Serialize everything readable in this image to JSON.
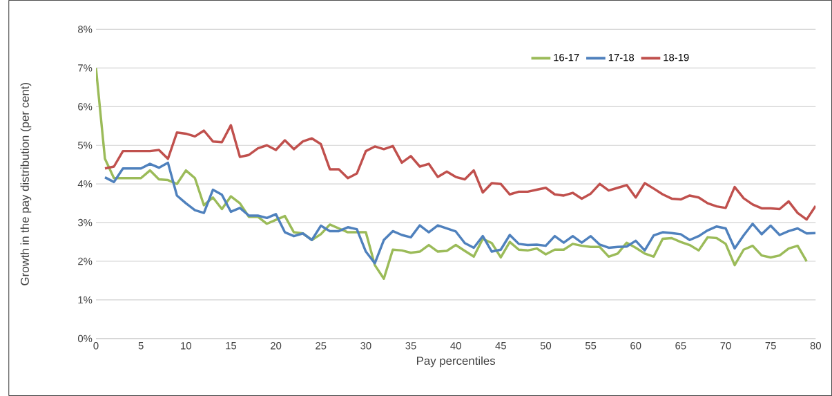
{
  "chart_data": {
    "type": "line",
    "xlabel": "Pay percentiles",
    "ylabel": "Growth in the pay distribution (per cent)",
    "x": [
      0,
      1,
      2,
      3,
      4,
      5,
      6,
      7,
      8,
      9,
      10,
      11,
      12,
      13,
      14,
      15,
      16,
      17,
      18,
      19,
      20,
      21,
      22,
      23,
      24,
      25,
      26,
      27,
      28,
      29,
      30,
      31,
      32,
      33,
      34,
      35,
      36,
      37,
      38,
      39,
      40,
      41,
      42,
      43,
      44,
      45,
      46,
      47,
      48,
      49,
      50,
      51,
      52,
      53,
      54,
      55,
      56,
      57,
      58,
      59,
      60,
      61,
      62,
      63,
      64,
      65,
      66,
      67,
      68,
      69,
      70,
      71,
      72,
      73,
      74,
      75,
      76,
      77,
      78,
      79,
      80
    ],
    "series": [
      {
        "name": "16-17",
        "color": "#9bbb59",
        "values": [
          7.0,
          4.65,
          4.15,
          4.15,
          4.15,
          4.15,
          4.35,
          4.12,
          4.1,
          4.0,
          4.35,
          4.15,
          3.45,
          3.65,
          3.35,
          3.68,
          3.5,
          3.15,
          3.15,
          2.97,
          3.07,
          3.17,
          2.75,
          2.72,
          2.55,
          2.7,
          2.95,
          2.85,
          2.75,
          2.75,
          2.75,
          1.9,
          1.55,
          2.3,
          2.28,
          2.22,
          2.25,
          2.42,
          2.25,
          2.27,
          2.42,
          2.27,
          2.12,
          2.58,
          2.47,
          2.1,
          2.5,
          2.3,
          2.28,
          2.33,
          2.18,
          2.3,
          2.3,
          2.45,
          2.4,
          2.37,
          2.37,
          2.12,
          2.2,
          2.48,
          2.35,
          2.2,
          2.12,
          2.58,
          2.6,
          2.5,
          2.42,
          2.28,
          2.62,
          2.6,
          2.45,
          1.9,
          2.3,
          2.4,
          2.15,
          2.1,
          2.15,
          2.33,
          2.4,
          2.0,
          null
        ]
      },
      {
        "name": "17-18",
        "color": "#4f81bd",
        "values": [
          null,
          4.17,
          4.05,
          4.4,
          4.4,
          4.4,
          4.52,
          4.42,
          4.55,
          3.7,
          3.5,
          3.32,
          3.25,
          3.85,
          3.72,
          3.28,
          3.38,
          3.18,
          3.18,
          3.12,
          3.22,
          2.75,
          2.65,
          2.72,
          2.55,
          2.92,
          2.78,
          2.78,
          2.88,
          2.83,
          2.25,
          1.95,
          2.55,
          2.78,
          2.68,
          2.62,
          2.93,
          2.75,
          2.93,
          2.85,
          2.77,
          2.47,
          2.35,
          2.65,
          2.25,
          2.3,
          2.68,
          2.45,
          2.42,
          2.43,
          2.4,
          2.65,
          2.48,
          2.65,
          2.48,
          2.65,
          2.43,
          2.35,
          2.37,
          2.38,
          2.53,
          2.28,
          2.67,
          2.75,
          2.73,
          2.7,
          2.55,
          2.65,
          2.8,
          2.9,
          2.85,
          2.33,
          2.67,
          2.97,
          2.7,
          2.92,
          2.68,
          2.78,
          2.85,
          2.72,
          2.73
        ]
      },
      {
        "name": "18-19",
        "color": "#c0504d",
        "values": [
          null,
          4.4,
          4.45,
          4.85,
          4.85,
          4.85,
          4.85,
          4.88,
          4.65,
          5.33,
          5.3,
          5.23,
          5.38,
          5.1,
          5.08,
          5.52,
          4.7,
          4.75,
          4.92,
          5.0,
          4.88,
          5.13,
          4.9,
          5.1,
          5.18,
          5.03,
          4.38,
          4.38,
          4.15,
          4.27,
          4.85,
          4.97,
          4.9,
          4.98,
          4.55,
          4.72,
          4.45,
          4.52,
          4.18,
          4.32,
          4.18,
          4.12,
          4.35,
          3.78,
          4.02,
          4.0,
          3.73,
          3.8,
          3.8,
          3.85,
          3.9,
          3.73,
          3.7,
          3.77,
          3.62,
          3.75,
          4.0,
          3.83,
          3.9,
          3.97,
          3.65,
          4.02,
          3.88,
          3.73,
          3.62,
          3.6,
          3.7,
          3.65,
          3.5,
          3.42,
          3.38,
          3.92,
          3.63,
          3.47,
          3.37,
          3.37,
          3.35,
          3.55,
          3.25,
          3.08,
          3.43
        ]
      }
    ],
    "xlim": [
      0,
      80
    ],
    "xticks": [
      0,
      5,
      10,
      15,
      20,
      25,
      30,
      35,
      40,
      45,
      50,
      55,
      60,
      65,
      70,
      75,
      80
    ],
    "ylim": [
      0,
      8
    ],
    "yticks": [
      {
        "value": 0,
        "label": "0%"
      },
      {
        "value": 1,
        "label": "1%"
      },
      {
        "value": 2,
        "label": "2%"
      },
      {
        "value": 3,
        "label": "3%"
      },
      {
        "value": 4,
        "label": "4%"
      },
      {
        "value": 5,
        "label": "5%"
      },
      {
        "value": 6,
        "label": "6%"
      },
      {
        "value": 7,
        "label": "7%"
      },
      {
        "value": 8,
        "label": "8%"
      }
    ],
    "grid": "y",
    "legend": "top right",
    "marker": "none",
    "line_style": "solid"
  }
}
